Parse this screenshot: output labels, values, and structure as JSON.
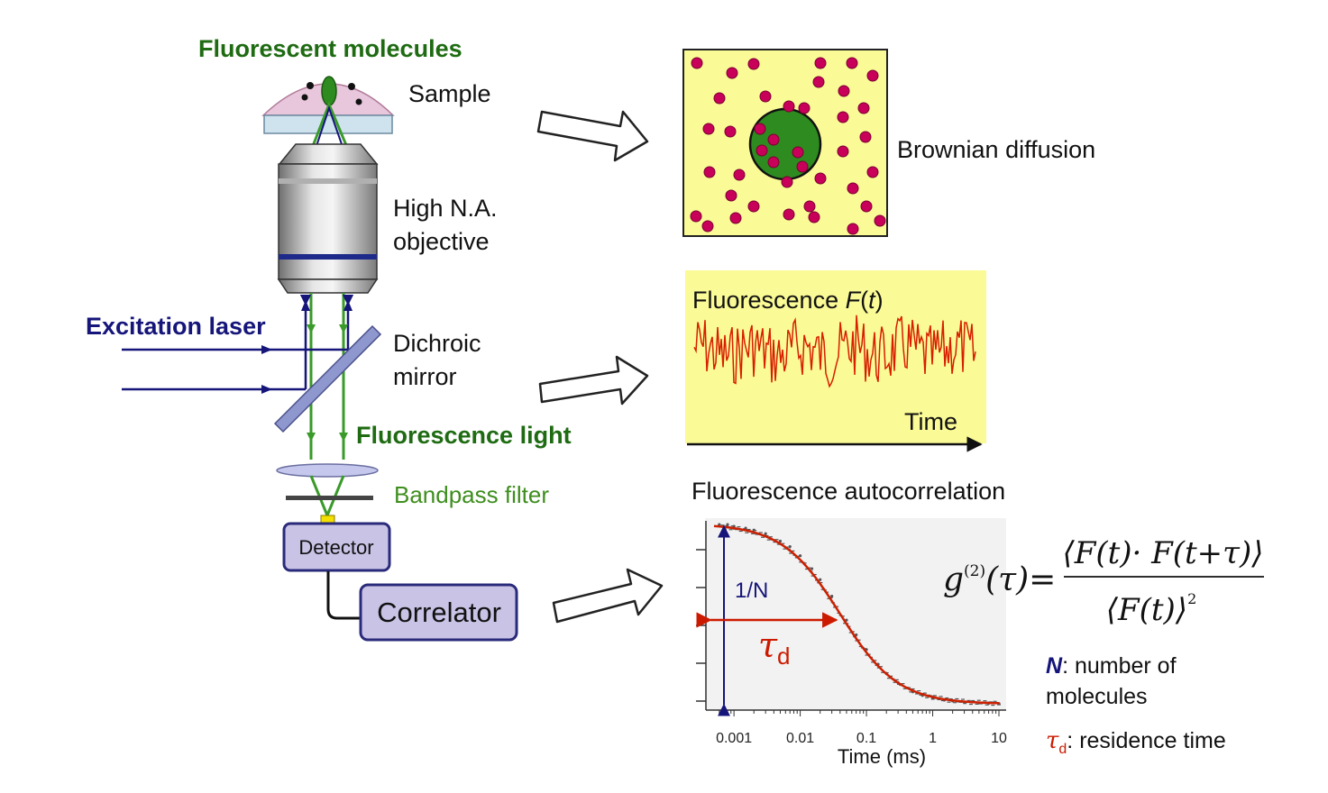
{
  "labels": {
    "fluorescent_molecules": "Fluorescent molecules",
    "sample": "Sample",
    "objective_line1": "High N.A.",
    "objective_line2": "objective",
    "excitation_laser": "Excitation laser",
    "dichroic_line1": "Dichroic",
    "dichroic_line2": "mirror",
    "fluorescence_light": "Fluorescence light",
    "bandpass_filter": "Bandpass filter",
    "detector": "Detector",
    "correlator": "Correlator",
    "brownian_diffusion": "Brownian diffusion",
    "signal_title_prefix": "Fluorescence ",
    "signal_title_F": "F",
    "signal_title_open": "(",
    "signal_title_t": "t",
    "signal_title_close": ")",
    "signal_time": "Time",
    "autocorrelation_title": "Fluorescence autocorrelation",
    "one_over_N": "1/N",
    "tau_d": "τ",
    "tau_d_sub": "d",
    "time_ms": "Time (ms)"
  },
  "formula": {
    "lhs": "g",
    "lhs_sup": "(2)",
    "lhs_arg": "(τ)=",
    "numerator": "⟨F(t)· F(t+τ)⟩",
    "denominator": "⟨F(t)⟩",
    "denominator_sup": "2"
  },
  "legend": {
    "N_symbol": "N",
    "N_text": ": number of",
    "N_text2": "molecules",
    "tau_symbol": "τ",
    "tau_sub": "d",
    "tau_text": ": residence time"
  },
  "colors": {
    "sample_dome": "#e8c6dc",
    "coverslip": "#cfe3ee",
    "focal_volume": "#2e8b1f",
    "beam_green": "#3a9a2a",
    "beam_navy": "#15157a",
    "panel_yellow": "#fafa96",
    "molecule": "#c8005a",
    "signal_red": "#d81e00",
    "box_fill": "#c9c3e6",
    "box_stroke": "#2a2a7a",
    "fit_red": "#cc1f00",
    "tau_red": "#cc1a00"
  },
  "chart_data": {
    "type": "scatter",
    "title": "Fluorescence autocorrelation",
    "xlabel": "Time (ms)",
    "ylabel": "",
    "x_scale": "log",
    "xlim": [
      0.0005,
      10
    ],
    "ylim": [
      0,
      1
    ],
    "x_ticks": [
      "0.001",
      "0.01",
      "0.1",
      "1",
      "10"
    ],
    "tick_values": [
      0.001,
      0.01,
      0.1,
      1,
      10
    ],
    "tau_d_ms": 0.04,
    "series": [
      {
        "x": [
          0.0006,
          0.0008,
          0.001,
          0.0015,
          0.002,
          0.003,
          0.005,
          0.007,
          0.01,
          0.015,
          0.02,
          0.03,
          0.05,
          0.07,
          0.1,
          0.15,
          0.2,
          0.3,
          0.5,
          0.7,
          1,
          1.5,
          2,
          3,
          5,
          7,
          10
        ],
        "y": [
          0.98,
          0.98,
          0.97,
          0.96,
          0.95,
          0.93,
          0.89,
          0.86,
          0.81,
          0.74,
          0.68,
          0.59,
          0.46,
          0.38,
          0.3,
          0.22,
          0.17,
          0.12,
          0.07,
          0.05,
          0.035,
          0.025,
          0.02,
          0.015,
          0.01,
          0.008,
          0.006
        ]
      }
    ]
  }
}
